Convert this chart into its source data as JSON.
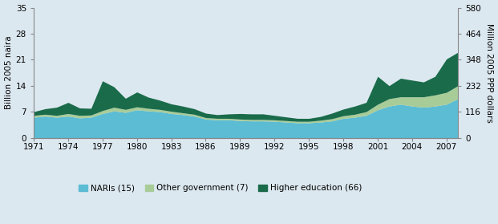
{
  "years": [
    1971,
    1972,
    1973,
    1974,
    1975,
    1976,
    1977,
    1978,
    1979,
    1980,
    1981,
    1982,
    1983,
    1984,
    1985,
    1986,
    1987,
    1988,
    1989,
    1990,
    1991,
    1992,
    1993,
    1994,
    1995,
    1996,
    1997,
    1998,
    1999,
    2000,
    2001,
    2002,
    2003,
    2004,
    2005,
    2006,
    2007,
    2008
  ],
  "naris": [
    5.5,
    5.8,
    5.5,
    5.8,
    5.3,
    5.5,
    6.5,
    7.2,
    6.8,
    7.5,
    7.2,
    7.0,
    6.5,
    6.2,
    5.8,
    5.0,
    4.8,
    4.8,
    4.6,
    4.5,
    4.5,
    4.4,
    4.2,
    4.0,
    4.0,
    4.2,
    4.5,
    5.2,
    5.5,
    6.0,
    7.5,
    8.5,
    9.0,
    8.5,
    8.2,
    8.5,
    9.0,
    10.5
  ],
  "other_gov": [
    0.5,
    0.5,
    0.5,
    0.7,
    0.7,
    0.6,
    0.8,
    1.0,
    0.8,
    0.8,
    0.7,
    0.6,
    0.6,
    0.5,
    0.5,
    0.4,
    0.4,
    0.4,
    0.4,
    0.4,
    0.4,
    0.4,
    0.4,
    0.4,
    0.4,
    0.5,
    0.6,
    0.7,
    0.8,
    1.0,
    1.5,
    2.0,
    2.0,
    2.5,
    2.8,
    3.0,
    3.2,
    3.5
  ],
  "higher_ed": [
    1.0,
    1.5,
    2.2,
    3.0,
    2.0,
    1.8,
    8.0,
    5.5,
    3.0,
    4.0,
    3.0,
    2.5,
    2.0,
    1.8,
    1.5,
    1.2,
    1.0,
    1.2,
    1.5,
    1.5,
    1.5,
    1.2,
    1.0,
    0.8,
    0.8,
    1.0,
    1.5,
    1.8,
    2.2,
    2.5,
    7.5,
    3.5,
    5.0,
    4.5,
    4.0,
    5.0,
    9.0,
    9.0
  ],
  "naris_color": "#5bbcd4",
  "other_gov_color": "#a8cc98",
  "higher_ed_color": "#1a6b4a",
  "bg_color": "#dce8f0",
  "yticks_left": [
    0,
    7,
    14,
    21,
    28,
    35
  ],
  "yticks_right": [
    0,
    116,
    232,
    348,
    464,
    580
  ],
  "xticks": [
    1971,
    1974,
    1977,
    1980,
    1983,
    1986,
    1989,
    1992,
    1995,
    1998,
    2001,
    2004,
    2007
  ],
  "ylabel_left": "Billion 2005 naira",
  "ylabel_right": "Million 2005 PPP dollars",
  "legend_labels": [
    "NARIs (15)",
    "Other government (7)",
    "Higher education (66)"
  ],
  "ylim": [
    0,
    35
  ],
  "ylim_right": [
    0,
    580
  ],
  "spine_color": "#888888"
}
